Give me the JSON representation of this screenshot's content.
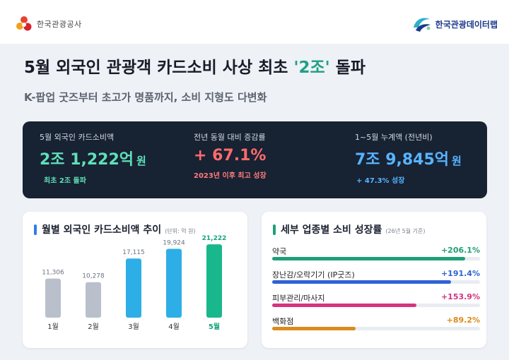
{
  "brand": {
    "left_name": "한국관광공사",
    "right_name": "한국관광데이터랩"
  },
  "headline": {
    "title_main": "5월 외국인 관광객 카드소비 사상 최초 ",
    "title_highlight": "'2조'",
    "title_end": " 돌파",
    "subtitle": "K-팝업 굿즈부터 초고가 명품까지, 소비 지형도 다변화"
  },
  "kpis": [
    {
      "label": "5월 외국인 카드소비액",
      "value": "2조 1,222억",
      "unit": "원",
      "note": "최초 2조 돌파"
    },
    {
      "label": "전년 동월 대비 증감률",
      "value": "+ 67.1%",
      "unit": "",
      "note": "2023년 이후 최고 성장"
    },
    {
      "label": "1~5월 누계액 (전년비)",
      "value": "7조 9,845억",
      "unit": "원",
      "note": "+ 47.3% 성장"
    }
  ],
  "colors": {
    "teal": "#1f9f86",
    "dark_panel": "#172233",
    "kpi_green": "#5fe0b8",
    "kpi_red": "#ff6b6b",
    "kpi_blue": "#58b4ff",
    "bar_gray": "#b9c0cc",
    "bar_blue": "#2eaee6",
    "bar_green": "#19b78c"
  },
  "chart_data": [
    {
      "type": "bar",
      "title": "월별 외국인 카드소비액 추이",
      "unit": "(단위: 억 원)",
      "categories": [
        "1월",
        "2월",
        "3월",
        "4월",
        "5월"
      ],
      "values": [
        11306,
        10278,
        17115,
        19924,
        21222
      ],
      "value_labels": [
        "11,306",
        "10,278",
        "17,115",
        "19,924",
        "21,222"
      ],
      "bar_colors": [
        "#b9c0cc",
        "#b9c0cc",
        "#2eaee6",
        "#2eaee6",
        "#19b78c"
      ],
      "highlight_index": 4,
      "ylim": [
        0,
        23500
      ],
      "grid": false
    },
    {
      "type": "bar",
      "orientation": "horizontal",
      "title": "세부 업종별 소비 성장률",
      "unit": "(26년 5월 기준)",
      "categories": [
        "약국",
        "장난감/오락기기 (IP굿즈)",
        "피부관리/마사지",
        "백화점"
      ],
      "values": [
        206.1,
        191.4,
        153.9,
        89.2
      ],
      "value_labels": [
        "+206.1%",
        "+191.4%",
        "+153.9%",
        "+89.2%"
      ],
      "bar_colors": [
        "#1f9f77",
        "#2f63d6",
        "#d6337e",
        "#dc8a1c"
      ],
      "xlim": [
        0,
        222
      ]
    }
  ]
}
